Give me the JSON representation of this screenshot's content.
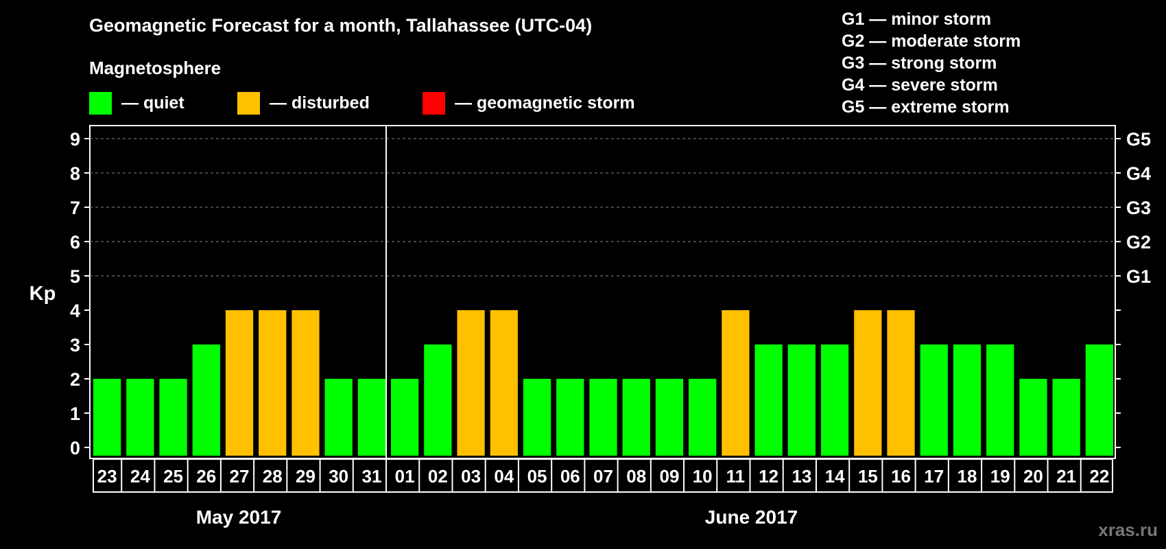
{
  "title": "Geomagnetic Forecast for a month, Tallahassee (UTC-04)",
  "legend": {
    "heading": "Magnetosphere",
    "items": [
      {
        "label": "— quiet",
        "color": "#00ff00"
      },
      {
        "label": "— disturbed",
        "color": "#ffc000"
      },
      {
        "label": "— geomagnetic storm",
        "color": "#ff0000"
      }
    ]
  },
  "storm_scale": [
    "G1 — minor storm",
    "G2 — moderate storm",
    "G3 — strong storm",
    "G4 — severe storm",
    "G5 — extreme storm"
  ],
  "watermark": "xras.ru",
  "chart_data": {
    "type": "bar",
    "ylabel": "Kp",
    "ylim": [
      0,
      9
    ],
    "yticks": [
      "0",
      "1",
      "2",
      "3",
      "4",
      "5",
      "6",
      "7",
      "8",
      "9"
    ],
    "right_axis_labels": [
      {
        "at": 5,
        "label": "G1"
      },
      {
        "at": 6,
        "label": "G2"
      },
      {
        "at": 7,
        "label": "G3"
      },
      {
        "at": 8,
        "label": "G4"
      },
      {
        "at": 9,
        "label": "G5"
      }
    ],
    "grid": "dashed at 5-9",
    "categories": [
      "23",
      "24",
      "25",
      "26",
      "27",
      "28",
      "29",
      "30",
      "31",
      "01",
      "02",
      "03",
      "04",
      "05",
      "06",
      "07",
      "08",
      "09",
      "10",
      "11",
      "12",
      "13",
      "14",
      "15",
      "16",
      "17",
      "18",
      "19",
      "20",
      "21",
      "22"
    ],
    "values": [
      2,
      2,
      2,
      3,
      4,
      4,
      4,
      2,
      2,
      2,
      3,
      4,
      4,
      2,
      2,
      2,
      2,
      2,
      2,
      4,
      3,
      3,
      3,
      4,
      4,
      3,
      3,
      3,
      2,
      2,
      3
    ],
    "status": [
      "quiet",
      "quiet",
      "quiet",
      "quiet",
      "disturbed",
      "disturbed",
      "disturbed",
      "quiet",
      "quiet",
      "quiet",
      "quiet",
      "disturbed",
      "disturbed",
      "quiet",
      "quiet",
      "quiet",
      "quiet",
      "quiet",
      "quiet",
      "disturbed",
      "quiet",
      "quiet",
      "quiet",
      "disturbed",
      "disturbed",
      "quiet",
      "quiet",
      "quiet",
      "quiet",
      "quiet",
      "quiet"
    ],
    "months": [
      {
        "label": "May 2017",
        "start": 0,
        "end": 8
      },
      {
        "label": "June 2017",
        "start": 9,
        "end": 30
      }
    ]
  }
}
